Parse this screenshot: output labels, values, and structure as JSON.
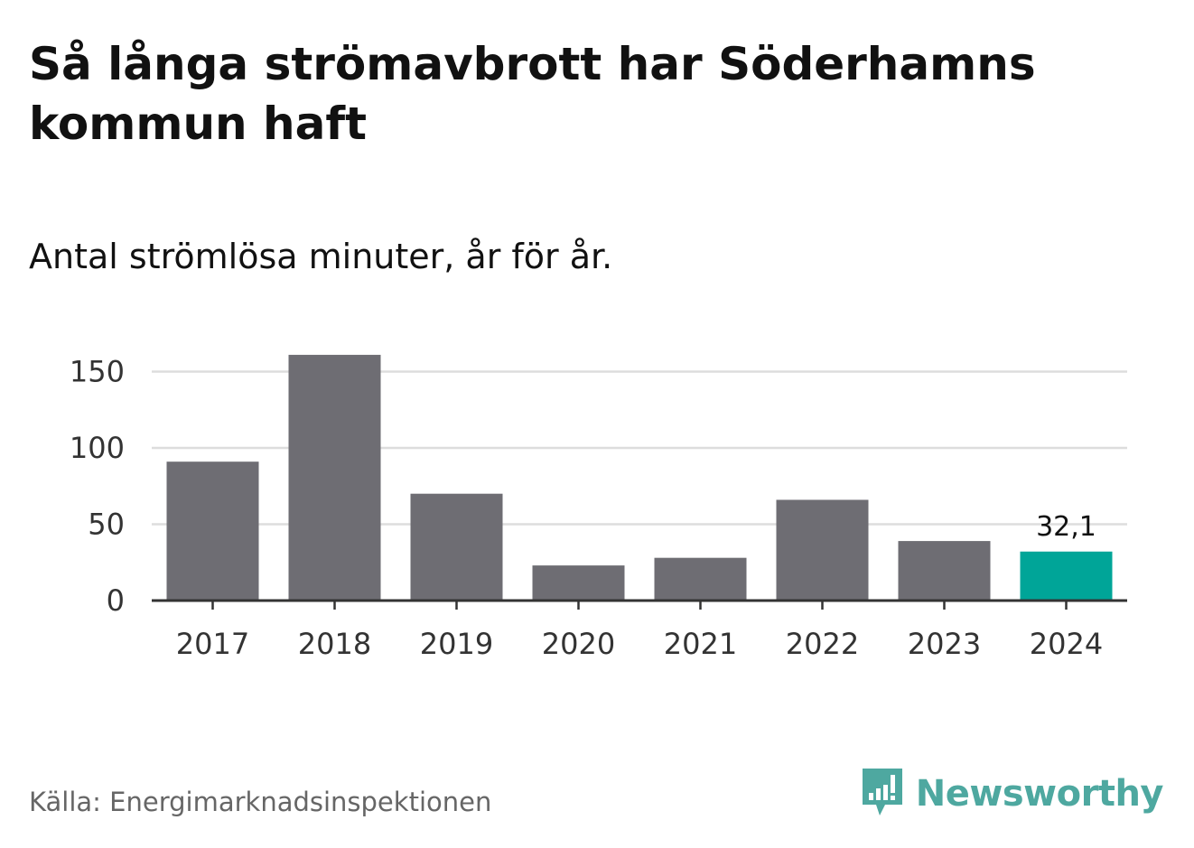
{
  "header": {
    "title": "Så långa strömavbrott har Söderhamns kommun haft",
    "subtitle": "Antal strömlösa minuter, år för år."
  },
  "footer": {
    "source": "Källa: Energimarknadsinspektionen",
    "brand": "Newsworthy",
    "brand_icon": "bar-chart-speech-bubble-icon"
  },
  "colors": {
    "bar": "#6e6d73",
    "highlight": "#00a598",
    "gridline": "#dddddd",
    "axis": "#333333",
    "brand": "#4ea8a0"
  },
  "chart_data": {
    "type": "bar",
    "categories": [
      "2017",
      "2018",
      "2019",
      "2020",
      "2021",
      "2022",
      "2023",
      "2024"
    ],
    "values": [
      91,
      161,
      70,
      23,
      28,
      66,
      39,
      32.1
    ],
    "highlight_index": 7,
    "data_labels": [
      {
        "index": 7,
        "text": "32,1"
      }
    ],
    "yticks": [
      "0",
      "50",
      "100",
      "150"
    ],
    "ylim": [
      0,
      170
    ],
    "grid": true,
    "title": "",
    "xlabel": "",
    "ylabel": ""
  }
}
